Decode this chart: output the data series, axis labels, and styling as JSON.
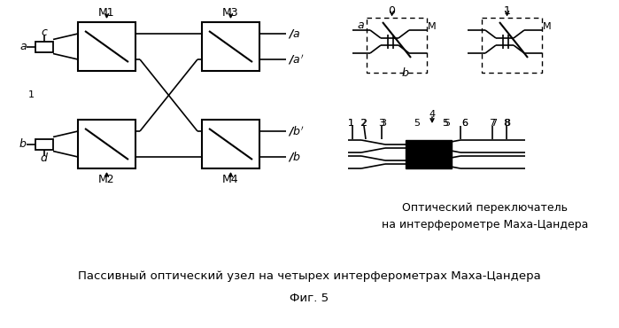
{
  "bg_color": "#ffffff",
  "title_main": "Пассивный оптический узел на четырех интерферометрах Маха-Цандера",
  "title_sub": "Фиг. 5",
  "title_right": "Оптический переключатель\nна интерферометре Маха-Цандера",
  "fig_width": 6.99,
  "fig_height": 3.7,
  "dpi": 100
}
